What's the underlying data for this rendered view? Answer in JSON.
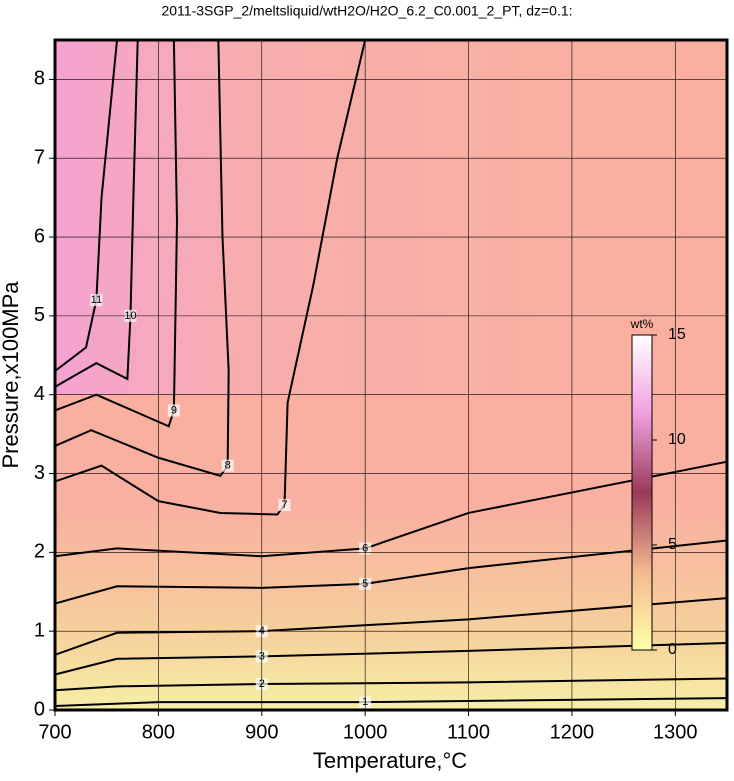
{
  "chart_data": {
    "type": "contour",
    "title": "2011-3SGP_2/meltsliquid/wtH2O/H2O_6.2_C0.001_2_PT, dz=0.1:",
    "x_label": "Temperature,°C",
    "y_label": "Pressure,x100MPa",
    "xlim": [
      700,
      1350
    ],
    "ylim": [
      0,
      8.5
    ],
    "xticks": [
      700,
      800,
      900,
      1000,
      1100,
      1200,
      1300
    ],
    "yticks": [
      0,
      1,
      2,
      3,
      4,
      5,
      6,
      7,
      8
    ],
    "grid": true,
    "line_color": "#000000",
    "contours": [
      {
        "level": 1,
        "x": [
          700,
          800,
          1000,
          1350
        ],
        "y": [
          0.05,
          0.1,
          0.1,
          0.15
        ]
      },
      {
        "level": 2,
        "x": [
          700,
          760,
          900,
          1100,
          1350
        ],
        "y": [
          0.25,
          0.3,
          0.33,
          0.35,
          0.4
        ]
      },
      {
        "level": 3,
        "x": [
          700,
          760,
          900,
          1100,
          1350
        ],
        "y": [
          0.45,
          0.65,
          0.68,
          0.75,
          0.85
        ]
      },
      {
        "level": 4,
        "x": [
          700,
          760,
          900,
          1100,
          1350
        ],
        "y": [
          0.7,
          0.98,
          1.0,
          1.15,
          1.42
        ]
      },
      {
        "level": 5,
        "x": [
          700,
          760,
          900,
          1000,
          1100,
          1350
        ],
        "y": [
          1.35,
          1.57,
          1.55,
          1.6,
          1.8,
          2.15
        ]
      },
      {
        "level": 6,
        "x": [
          700,
          760,
          900,
          1000,
          1100,
          1350
        ],
        "y": [
          1.95,
          2.05,
          1.95,
          2.05,
          2.5,
          3.15
        ]
      },
      {
        "level": 7,
        "x": [
          700,
          745,
          800,
          860,
          915,
          922,
          925,
          950,
          973,
          1000
        ],
        "y": [
          2.9,
          3.1,
          2.65,
          2.5,
          2.48,
          2.6,
          3.9,
          5.4,
          7,
          8.5
        ]
      },
      {
        "level": 8,
        "x": [
          700,
          735,
          800,
          860,
          867,
          868,
          862,
          858
        ],
        "y": [
          3.35,
          3.55,
          3.2,
          2.97,
          3.1,
          4.3,
          6.0,
          8.5
        ]
      },
      {
        "level": 9,
        "x": [
          700,
          740,
          810,
          815,
          818,
          815
        ],
        "y": [
          3.8,
          4.0,
          3.6,
          3.8,
          6.2,
          8.5
        ]
      },
      {
        "level": 10,
        "x": [
          700,
          740,
          770,
          773,
          776,
          780
        ],
        "y": [
          4.1,
          4.4,
          4.2,
          5.0,
          6.6,
          8.5
        ]
      },
      {
        "level": 11,
        "x": [
          700,
          730,
          740,
          745,
          760
        ],
        "y": [
          4.3,
          4.6,
          5.2,
          6.5,
          8.5
        ]
      }
    ],
    "colorbar": {
      "label": "wt%",
      "lim": [
        0,
        15
      ],
      "ticks": [
        0,
        5,
        10,
        15
      ],
      "colors": [
        "#ffffa8",
        "#f4b890",
        "#9a3a5a",
        "#f0a0e0",
        "#ffffff"
      ]
    }
  }
}
